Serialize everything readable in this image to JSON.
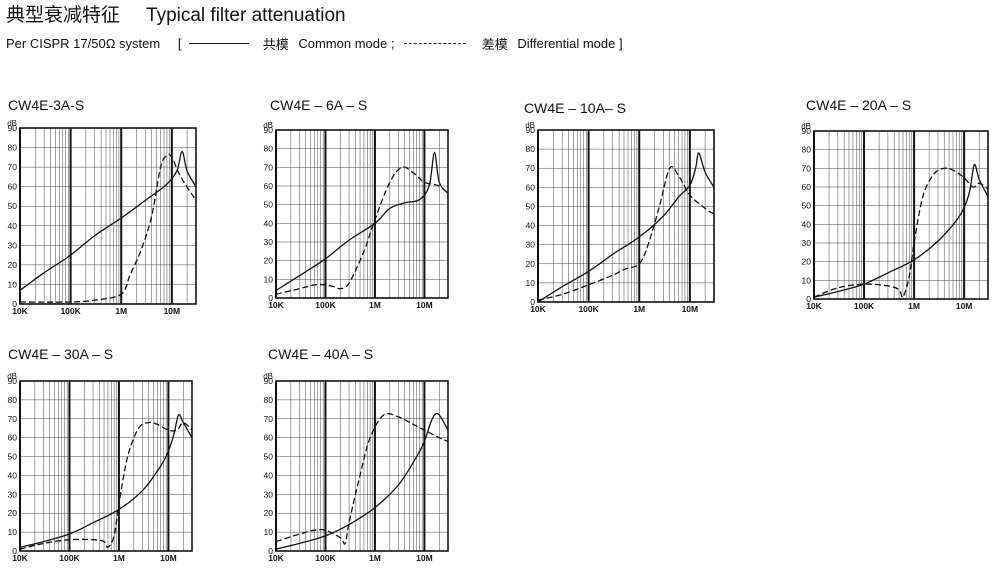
{
  "header": {
    "title_cn": "典型衰减特征",
    "title_en": "Typical filter attenuation",
    "subtitle_prefix": "Per CISPR 17/50Ω  system",
    "bracket_open": "[",
    "common_cn": "共模",
    "common_en": "Common mode ;",
    "diff_cn": "差模",
    "diff_en": "Differential mode ]"
  },
  "chart_data": [
    {
      "type": "line",
      "title": "CW4E-3A-S",
      "ylabel": "dB",
      "xscale": "log",
      "xlim": [
        10000,
        30000000
      ],
      "ylim": [
        0,
        90
      ],
      "xticks": [
        10000,
        100000,
        1000000,
        10000000
      ],
      "xtick_labels": [
        "10K",
        "100K",
        "1M",
        "10M"
      ],
      "yticks": [
        0,
        10,
        20,
        30,
        40,
        50,
        60,
        70,
        80,
        90
      ],
      "grid": true,
      "series": [
        {
          "name": "共模 Common mode",
          "style": "solid",
          "x": [
            10000,
            30000,
            100000,
            300000,
            1000000,
            3000000,
            7000000,
            10000000,
            13000000,
            16000000,
            20000000,
            30000000
          ],
          "y": [
            7,
            16,
            25,
            35,
            44,
            53,
            60,
            64,
            69,
            78,
            68,
            60
          ]
        },
        {
          "name": "差模 Differential mode",
          "style": "dashed",
          "x": [
            10000,
            100000,
            300000,
            1000000,
            1500000,
            2500000,
            4000000,
            6000000,
            8000000,
            10000000,
            15000000,
            30000000
          ],
          "y": [
            1,
            1,
            2,
            5,
            15,
            28,
            45,
            70,
            76,
            75,
            65,
            53
          ]
        }
      ]
    },
    {
      "type": "line",
      "title": "CW4E – 6A – S",
      "ylabel": "dB",
      "xscale": "log",
      "xlim": [
        10000,
        30000000
      ],
      "ylim": [
        0,
        90
      ],
      "xticks": [
        10000,
        100000,
        1000000,
        10000000
      ],
      "xtick_labels": [
        "10K",
        "100K",
        "1M",
        "10M"
      ],
      "yticks": [
        0,
        10,
        20,
        30,
        40,
        50,
        60,
        70,
        80,
        90
      ],
      "grid": true,
      "series": [
        {
          "name": "共模 Common mode",
          "style": "solid",
          "x": [
            10000,
            30000,
            100000,
            300000,
            1000000,
            2000000,
            4000000,
            7000000,
            10000000,
            13000000,
            16000000,
            20000000,
            30000000
          ],
          "y": [
            4,
            12,
            21,
            31,
            40,
            48,
            51,
            52,
            55,
            62,
            78,
            62,
            56
          ]
        },
        {
          "name": "差模 Differential mode",
          "style": "dashed",
          "x": [
            10000,
            30000,
            60000,
            100000,
            150000,
            200000,
            300000,
            600000,
            1000000,
            2000000,
            3500000,
            6000000,
            10000000,
            20000000,
            30000000
          ],
          "y": [
            2,
            5,
            7,
            7,
            6,
            5,
            8,
            25,
            42,
            62,
            70,
            67,
            62,
            60,
            56
          ]
        }
      ]
    },
    {
      "type": "line",
      "title": "CW4E – 10A– S",
      "ylabel": "dB",
      "xscale": "log",
      "xlim": [
        10000,
        30000000
      ],
      "ylim": [
        0,
        90
      ],
      "xticks": [
        10000,
        100000,
        1000000,
        10000000
      ],
      "xtick_labels": [
        "10K",
        "100K",
        "1M",
        "10M"
      ],
      "yticks": [
        0,
        10,
        20,
        30,
        40,
        50,
        60,
        70,
        80,
        90
      ],
      "grid": true,
      "series": [
        {
          "name": "共模 Common mode",
          "style": "solid",
          "x": [
            10000,
            30000,
            100000,
            300000,
            1000000,
            3000000,
            6000000,
            10000000,
            13000000,
            15000000,
            20000000,
            30000000
          ],
          "y": [
            0,
            8,
            16,
            25,
            34,
            45,
            55,
            61,
            70,
            78,
            68,
            60
          ]
        },
        {
          "name": "差模 Differential mode",
          "style": "dashed",
          "x": [
            10000,
            30000,
            100000,
            300000,
            500000,
            1000000,
            1500000,
            2500000,
            4000000,
            6000000,
            10000000,
            20000000,
            30000000
          ],
          "y": [
            1,
            4,
            9,
            14,
            17,
            20,
            30,
            50,
            70,
            66,
            56,
            49,
            46
          ]
        }
      ]
    },
    {
      "type": "line",
      "title": "CW4E – 20A – S",
      "ylabel": "dB",
      "xscale": "log",
      "xlim": [
        10000,
        30000000
      ],
      "ylim": [
        0,
        90
      ],
      "xticks": [
        10000,
        100000,
        1000000,
        10000000
      ],
      "xtick_labels": [
        "10K",
        "100K",
        "1M",
        "10M"
      ],
      "yticks": [
        0,
        10,
        20,
        30,
        40,
        50,
        60,
        70,
        80,
        90
      ],
      "grid": true,
      "series": [
        {
          "name": "共模 Common mode",
          "style": "solid",
          "x": [
            10000,
            30000,
            100000,
            300000,
            1000000,
            3000000,
            7000000,
            10000000,
            13000000,
            16000000,
            20000000,
            30000000
          ],
          "y": [
            1,
            4,
            8,
            14,
            21,
            31,
            42,
            49,
            58,
            72,
            64,
            55
          ]
        },
        {
          "name": "差模 Differential mode",
          "style": "dashed",
          "x": [
            10000,
            30000,
            100000,
            300000,
            500000,
            600000,
            800000,
            1000000,
            1500000,
            2500000,
            4000000,
            6000000,
            10000000,
            15000000,
            20000000,
            30000000
          ],
          "y": [
            1,
            6,
            8,
            7,
            5,
            1,
            12,
            30,
            55,
            67,
            70,
            69,
            65,
            60,
            62,
            59
          ]
        }
      ]
    },
    {
      "type": "line",
      "title": "CW4E – 30A – S",
      "ylabel": "dB",
      "xscale": "log",
      "xlim": [
        10000,
        30000000
      ],
      "ylim": [
        0,
        90
      ],
      "xticks": [
        10000,
        100000,
        1000000,
        10000000
      ],
      "xtick_labels": [
        "10K",
        "100K",
        "1M",
        "10M"
      ],
      "yticks": [
        0,
        10,
        20,
        30,
        40,
        50,
        60,
        70,
        80,
        90
      ],
      "grid": true,
      "series": [
        {
          "name": "共模 Common mode",
          "style": "solid",
          "x": [
            10000,
            30000,
            100000,
            300000,
            1000000,
            3000000,
            7000000,
            10000000,
            13000000,
            16000000,
            20000000,
            30000000
          ],
          "y": [
            2,
            5,
            9,
            15,
            22,
            32,
            45,
            53,
            62,
            72,
            68,
            60
          ]
        },
        {
          "name": "差模 Differential mode",
          "style": "dashed",
          "x": [
            10000,
            30000,
            100000,
            300000,
            500000,
            600000,
            800000,
            1000000,
            1500000,
            2500000,
            4000000,
            6000000,
            10000000,
            15000000,
            20000000,
            30000000
          ],
          "y": [
            1,
            4,
            6,
            6,
            5,
            2,
            8,
            25,
            50,
            65,
            68,
            67,
            64,
            64,
            68,
            64
          ]
        }
      ]
    },
    {
      "type": "line",
      "title": "CW4E – 40A – S",
      "ylabel": "dB",
      "xscale": "log",
      "xlim": [
        10000,
        30000000
      ],
      "ylim": [
        0,
        90
      ],
      "xticks": [
        10000,
        100000,
        1000000,
        10000000
      ],
      "xtick_labels": [
        "10K",
        "100K",
        "1M",
        "10M"
      ],
      "yticks": [
        0,
        10,
        20,
        30,
        40,
        50,
        60,
        70,
        80,
        90
      ],
      "grid": true,
      "series": [
        {
          "name": "共模 Common mode",
          "style": "solid",
          "x": [
            10000,
            30000,
            100000,
            300000,
            1000000,
            3000000,
            7000000,
            10000000,
            13000000,
            16000000,
            20000000,
            30000000
          ],
          "y": [
            1,
            4,
            8,
            14,
            23,
            35,
            50,
            58,
            67,
            72,
            72,
            64
          ]
        },
        {
          "name": "差模 Differential mode",
          "style": "dashed",
          "x": [
            10000,
            30000,
            60000,
            100000,
            200000,
            250000,
            300000,
            500000,
            800000,
            1500000,
            3000000,
            6000000,
            10000000,
            20000000,
            30000000
          ],
          "y": [
            5,
            9,
            11,
            11,
            7,
            4,
            15,
            40,
            60,
            72,
            71,
            67,
            64,
            60,
            58
          ]
        }
      ]
    }
  ]
}
